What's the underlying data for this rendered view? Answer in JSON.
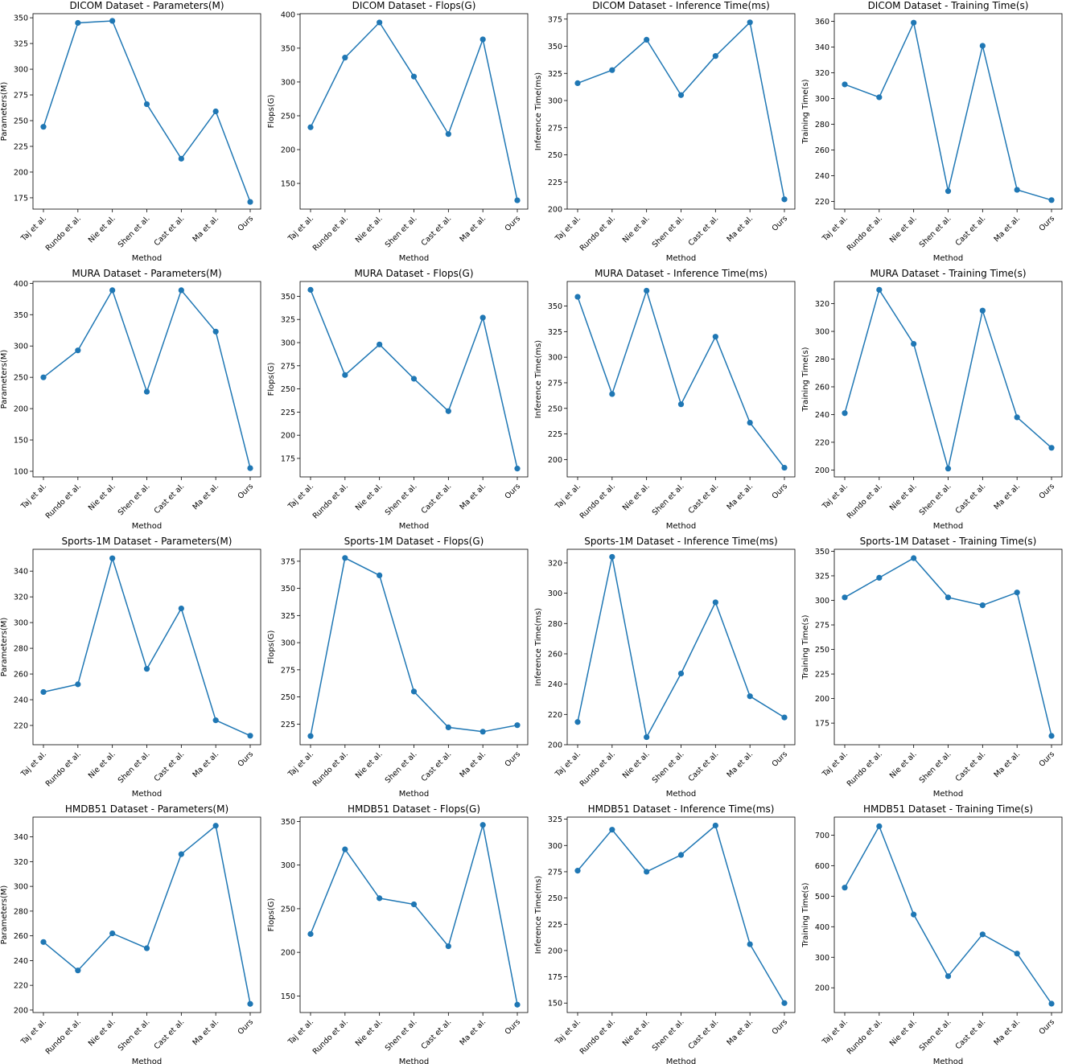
{
  "chart_data": [
    {
      "type": "line",
      "title": "DICOM Dataset - Parameters(M)",
      "xlabel": "Method",
      "ylabel": "Parameters(M)",
      "categories": [
        "Taj et al.",
        "Rundo et al.",
        "Nie et al.",
        "Shen et al.",
        "Cast et al.",
        "Ma et al.",
        "Ours"
      ],
      "values": [
        244,
        345,
        347,
        266,
        213,
        259,
        171
      ],
      "ylim": [
        164,
        354
      ],
      "yticks": [
        175,
        200,
        225,
        250,
        275,
        300,
        325,
        350
      ]
    },
    {
      "type": "line",
      "title": "DICOM Dataset - Flops(G)",
      "xlabel": "Method",
      "ylabel": "Flops(G)",
      "categories": [
        "Taj et al.",
        "Rundo et al.",
        "Nie et al.",
        "Shen et al.",
        "Cast et al.",
        "Ma et al.",
        "Ours"
      ],
      "values": [
        233,
        336,
        388,
        308,
        223,
        363,
        125
      ],
      "ylim": [
        112,
        401
      ],
      "yticks": [
        150,
        200,
        250,
        300,
        350,
        400
      ]
    },
    {
      "type": "line",
      "title": "DICOM Dataset - Inference Time(ms)",
      "xlabel": "Method",
      "ylabel": "Inference Time(ms)",
      "categories": [
        "Taj et al.",
        "Rundo et al.",
        "Nie et al.",
        "Shen et al.",
        "Cast et al.",
        "Ma et al.",
        "Ours"
      ],
      "values": [
        316,
        328,
        356,
        305,
        341,
        372,
        209
      ],
      "ylim": [
        200,
        380
      ],
      "yticks": [
        200,
        225,
        250,
        275,
        300,
        325,
        350,
        375
      ]
    },
    {
      "type": "line",
      "title": "DICOM Dataset - Training Time(s)",
      "xlabel": "Method",
      "ylabel": "Training Time(s)",
      "categories": [
        "Taj et al.",
        "Rundo et al.",
        "Nie et al.",
        "Shen et al.",
        "Cast et al.",
        "Ma et al.",
        "Ours"
      ],
      "values": [
        311,
        301,
        359,
        228,
        341,
        229,
        221
      ],
      "ylim": [
        214,
        366
      ],
      "yticks": [
        220,
        240,
        260,
        280,
        300,
        320,
        340,
        360
      ]
    },
    {
      "type": "line",
      "title": "MURA Dataset - Parameters(M)",
      "xlabel": "Method",
      "ylabel": "Parameters(M)",
      "categories": [
        "Taj et al.",
        "Rundo et al.",
        "Nie et al.",
        "Shen et al.",
        "Cast et al.",
        "Ma et al.",
        "Ours"
      ],
      "values": [
        250,
        293,
        389,
        227,
        389,
        323,
        105
      ],
      "ylim": [
        91,
        403
      ],
      "yticks": [
        100,
        150,
        200,
        250,
        300,
        350,
        400
      ]
    },
    {
      "type": "line",
      "title": "MURA Dataset - Flops(G)",
      "xlabel": "Method",
      "ylabel": "Flops(G)",
      "categories": [
        "Taj et al.",
        "Rundo et al.",
        "Nie et al.",
        "Shen et al.",
        "Cast et al.",
        "Ma et al.",
        "Ours"
      ],
      "values": [
        357,
        265,
        298,
        261,
        226,
        327,
        164
      ],
      "ylim": [
        155,
        366
      ],
      "yticks": [
        175,
        200,
        225,
        250,
        275,
        300,
        325,
        350
      ]
    },
    {
      "type": "line",
      "title": "MURA Dataset - Inference Time(ms)",
      "xlabel": "Method",
      "ylabel": "Inference Time(ms)",
      "categories": [
        "Taj et al.",
        "Rundo et al.",
        "Nie et al.",
        "Shen et al.",
        "Cast et al.",
        "Ma et al.",
        "Ours"
      ],
      "values": [
        359,
        264,
        365,
        254,
        320,
        236,
        192
      ],
      "ylim": [
        183,
        374
      ],
      "yticks": [
        200,
        225,
        250,
        275,
        300,
        325,
        350
      ]
    },
    {
      "type": "line",
      "title": "MURA Dataset - Training Time(s)",
      "xlabel": "Method",
      "ylabel": "Training Time(s)",
      "categories": [
        "Taj et al.",
        "Rundo et al.",
        "Nie et al.",
        "Shen et al.",
        "Cast et al.",
        "Ma et al.",
        "Ours"
      ],
      "values": [
        241,
        330,
        291,
        201,
        315,
        238,
        216
      ],
      "ylim": [
        195,
        336
      ],
      "yticks": [
        200,
        220,
        240,
        260,
        280,
        300,
        320
      ]
    },
    {
      "type": "line",
      "title": "Sports-1M Dataset - Parameters(M)",
      "xlabel": "Method",
      "ylabel": "Parameters(M)",
      "categories": [
        "Taj et al.",
        "Rundo et al.",
        "Nie et al.",
        "Shen et al.",
        "Cast et al.",
        "Ma et al.",
        "Ours"
      ],
      "values": [
        246,
        252,
        350,
        264,
        311,
        224,
        212
      ],
      "ylim": [
        205,
        357
      ],
      "yticks": [
        220,
        240,
        260,
        280,
        300,
        320,
        340
      ]
    },
    {
      "type": "line",
      "title": "Sports-1M Dataset - Flops(G)",
      "xlabel": "Method",
      "ylabel": "Flops(G)",
      "categories": [
        "Taj et al.",
        "Rundo et al.",
        "Nie et al.",
        "Shen et al.",
        "Cast et al.",
        "Ma et al.",
        "Ours"
      ],
      "values": [
        214,
        378,
        362,
        255,
        222,
        218,
        224
      ],
      "ylim": [
        206,
        386
      ],
      "yticks": [
        225,
        250,
        275,
        300,
        325,
        350,
        375
      ]
    },
    {
      "type": "line",
      "title": "Sports-1M Dataset - Inference Time(ms)",
      "xlabel": "Method",
      "ylabel": "Inference Time(ms)",
      "categories": [
        "Taj et al.",
        "Rundo et al.",
        "Nie et al.",
        "Shen et al.",
        "Cast et al.",
        "Ma et al.",
        "Ours"
      ],
      "values": [
        215,
        324,
        205,
        247,
        294,
        232,
        218
      ],
      "ylim": [
        200,
        329
      ],
      "yticks": [
        200,
        220,
        240,
        260,
        280,
        300,
        320
      ]
    },
    {
      "type": "line",
      "title": "Sports-1M Dataset - Training Time(s)",
      "xlabel": "Method",
      "ylabel": "Training Time(s)",
      "categories": [
        "Taj et al.",
        "Rundo et al.",
        "Nie et al.",
        "Shen et al.",
        "Cast et al.",
        "Ma et al.",
        "Ours"
      ],
      "values": [
        303,
        323,
        343,
        303,
        295,
        308,
        162
      ],
      "ylim": [
        153,
        352
      ],
      "yticks": [
        175,
        200,
        225,
        250,
        275,
        300,
        325,
        350
      ]
    },
    {
      "type": "line",
      "title": "HMDB51 Dataset - Parameters(M)",
      "xlabel": "Method",
      "ylabel": "Parameters(M)",
      "categories": [
        "Taj et al.",
        "Rundo et al.",
        "Nie et al.",
        "Shen et al.",
        "Cast et al.",
        "Ma et al.",
        "Ours"
      ],
      "values": [
        255,
        232,
        262,
        250,
        326,
        349,
        205
      ],
      "ylim": [
        198,
        356
      ],
      "yticks": [
        200,
        220,
        240,
        260,
        280,
        300,
        320,
        340
      ]
    },
    {
      "type": "line",
      "title": "HMDB51 Dataset - Flops(G)",
      "xlabel": "Method",
      "ylabel": "Flops(G)",
      "categories": [
        "Taj et al.",
        "Rundo et al.",
        "Nie et al.",
        "Shen et al.",
        "Cast et al.",
        "Ma et al.",
        "Ours"
      ],
      "values": [
        221,
        318,
        262,
        255,
        207,
        346,
        140
      ],
      "ylim": [
        131,
        355
      ],
      "yticks": [
        150,
        200,
        250,
        300,
        350
      ]
    },
    {
      "type": "line",
      "title": "HMDB51 Dataset - Inference Time(ms)",
      "xlabel": "Method",
      "ylabel": "Inference Time(ms)",
      "categories": [
        "Taj et al.",
        "Rundo et al.",
        "Nie et al.",
        "Shen et al.",
        "Cast et al.",
        "Ma et al.",
        "Ours"
      ],
      "values": [
        276,
        315,
        275,
        291,
        319,
        206,
        150
      ],
      "ylim": [
        141,
        327
      ],
      "yticks": [
        150,
        175,
        200,
        225,
        250,
        275,
        300,
        325
      ]
    },
    {
      "type": "line",
      "title": "HMDB51 Dataset - Training Time(s)",
      "xlabel": "Method",
      "ylabel": "Training Time(s)",
      "categories": [
        "Taj et al.",
        "Rundo et al.",
        "Nie et al.",
        "Shen et al.",
        "Cast et al.",
        "Ma et al.",
        "Ours"
      ],
      "values": [
        528,
        729,
        440,
        238,
        375,
        312,
        148
      ],
      "ylim": [
        119,
        759
      ],
      "yticks": [
        200,
        300,
        400,
        500,
        600,
        700
      ]
    }
  ]
}
